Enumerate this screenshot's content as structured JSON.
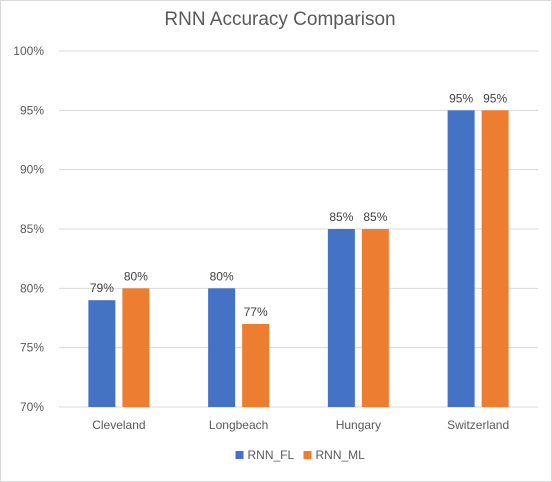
{
  "chart_data": {
    "type": "bar",
    "title": "RNN Accuracy Comparison",
    "xlabel": "",
    "ylabel": "",
    "categories": [
      "Cleveland",
      "Longbeach",
      "Hungary",
      "Switzerland"
    ],
    "series": [
      {
        "name": "RNN_FL",
        "color": "#4472c4",
        "values": [
          79,
          80,
          85,
          95
        ]
      },
      {
        "name": "RNN_ML",
        "color": "#ed7d31",
        "values": [
          80,
          77,
          85,
          95
        ]
      }
    ],
    "ylim": [
      70,
      100
    ],
    "yticks": [
      70,
      75,
      80,
      85,
      90,
      95,
      100
    ],
    "tick_suffix": "%",
    "data_label_suffix": "%",
    "grid": true,
    "legend_position": "bottom"
  }
}
